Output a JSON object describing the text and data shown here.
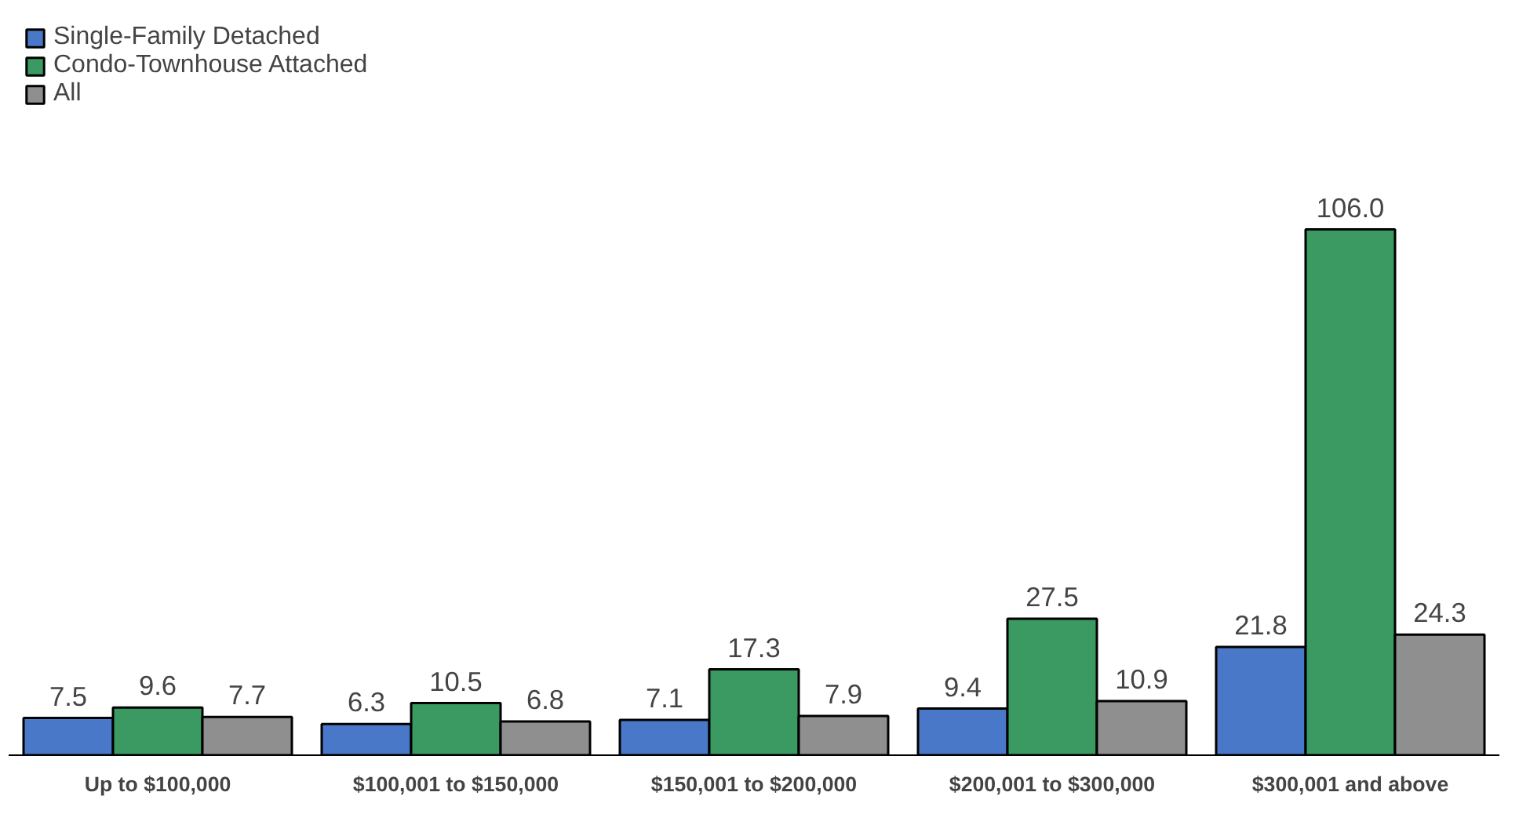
{
  "chart_data": {
    "type": "bar",
    "categories": [
      "Up to $100,000",
      "$100,001 to $150,000",
      "$150,001 to $200,000",
      "$200,001 to $300,000",
      "$300,001 and above"
    ],
    "series": [
      {
        "name": "Single-Family Detached",
        "color": "#4a78c8",
        "values": [
          7.5,
          6.3,
          7.1,
          9.4,
          21.8
        ]
      },
      {
        "name": "Condo-Townhouse Attached",
        "color": "#3a9a62",
        "values": [
          9.6,
          10.5,
          17.3,
          27.5,
          106.0
        ],
        "value_labels": [
          "9.6",
          "10.5",
          "17.3",
          "27.5",
          "106.0"
        ]
      },
      {
        "name": "All",
        "color": "#8f8f8f",
        "values": [
          7.7,
          6.8,
          7.9,
          10.9,
          24.3
        ]
      }
    ],
    "data_labels": true,
    "legend": "top left",
    "grid": false
  }
}
